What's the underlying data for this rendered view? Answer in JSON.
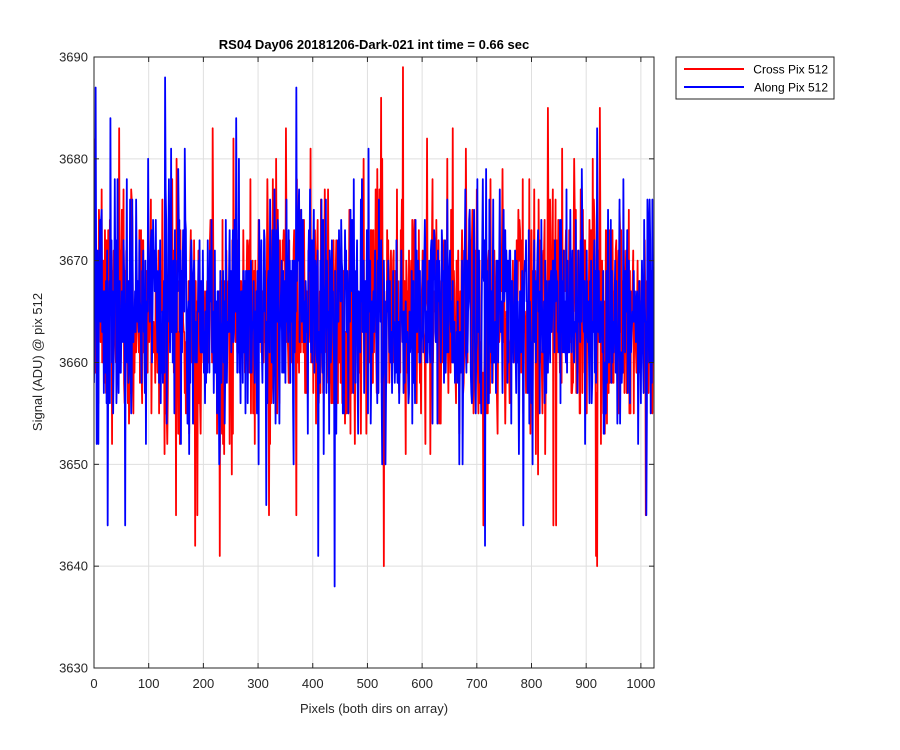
{
  "chart_data": {
    "type": "line",
    "title": "RS04 Day06 20181206-Dark-021 int time = 0.66 sec",
    "xlabel": "Pixels (both dirs on array)",
    "ylabel": "Signal (ADU) @ pix 512",
    "xlim": [
      0,
      1024
    ],
    "ylim": [
      3630,
      3690
    ],
    "xticks": [
      0,
      100,
      200,
      300,
      400,
      500,
      600,
      700,
      800,
      900,
      1000
    ],
    "yticks": [
      3630,
      3640,
      3650,
      3660,
      3670,
      3680,
      3690
    ],
    "grid": true,
    "legend_position": "outside-top-right",
    "noise": {
      "mean": 3665,
      "std": 6.2,
      "n_points": 1024
    },
    "series": [
      {
        "name": "Cross Pix 512",
        "color": "#ff0000",
        "seed": 7,
        "peaks": [
          [
            565,
            3689
          ],
          [
            525,
            3686
          ],
          [
            830,
            3685
          ],
          [
            925,
            3685
          ],
          [
            255,
            3682
          ],
          [
            185,
            3642
          ],
          [
            230,
            3641
          ],
          [
            530,
            3640
          ],
          [
            918,
            3641
          ],
          [
            920,
            3640
          ],
          [
            840,
            3644
          ],
          [
            845,
            3644
          ],
          [
            370,
            3645
          ],
          [
            150,
            3645
          ],
          [
            320,
            3645
          ]
        ]
      },
      {
        "name": "Along Pix 512",
        "color": "#0000ff",
        "seed": 19,
        "peaks": [
          [
            3,
            3687
          ],
          [
            130,
            3688
          ],
          [
            370,
            3687
          ],
          [
            30,
            3684
          ],
          [
            260,
            3684
          ],
          [
            440,
            3638
          ],
          [
            410,
            3641
          ],
          [
            25,
            3644
          ],
          [
            57,
            3644
          ],
          [
            715,
            3642
          ],
          [
            785,
            3644
          ],
          [
            1010,
            3645
          ]
        ]
      }
    ]
  }
}
